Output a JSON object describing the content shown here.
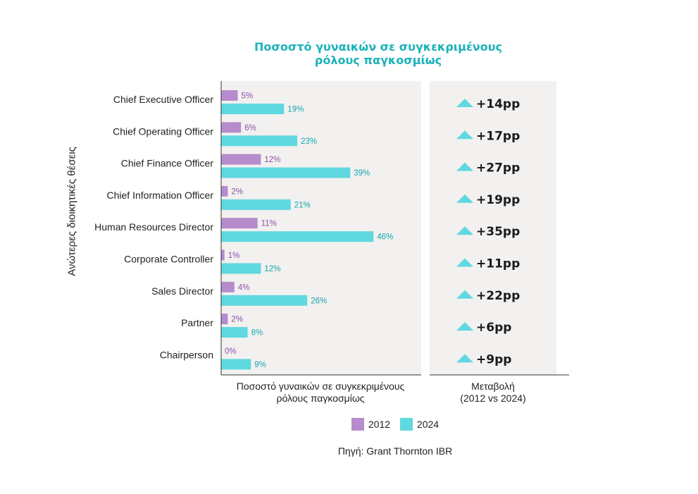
{
  "chart_data": {
    "type": "bar",
    "title": [
      "Ποσοστό γυναικών σε συγκεκριμένους",
      "ρόλους παγκοσμίως"
    ],
    "ylabel": "Ανώτερες διοικητικές θέσεις",
    "xlabel": [
      "Ποσοστό γυναικών σε συγκεκριμένους",
      "ρόλους παγκοσμίως"
    ],
    "change_label": [
      "Μεταβολή",
      "(2012 vs 2024)"
    ],
    "categories": [
      "Chief Executive Officer",
      "Chief Operating Officer",
      "Chief Finance Officer",
      "Chief Information Officer",
      "Human Resources Director",
      "Corporate Controller",
      "Sales Director",
      "Partner",
      "Chairperson"
    ],
    "series": [
      {
        "name": "2012",
        "color": "#b68ccc",
        "label_color": "#8d4fa8",
        "values": [
          5,
          6,
          12,
          2,
          11,
          1,
          4,
          2,
          0
        ]
      },
      {
        "name": "2024",
        "color": "#5fd8df",
        "label_color": "#16a5ad",
        "values": [
          19,
          23,
          39,
          21,
          46,
          12,
          26,
          8,
          9
        ]
      }
    ],
    "value_labels_2012": [
      "5%",
      "6%",
      "12%",
      "2%",
      "11%",
      "1%",
      "4%",
      "2%",
      "0%"
    ],
    "value_labels_2024": [
      "19%",
      "23%",
      "39%",
      "21%",
      "46%",
      "12%",
      "26%",
      "8%",
      "9%"
    ],
    "changes": [
      "+14pp",
      "+17pp",
      "+27pp",
      "+19pp",
      "+35pp",
      "+11pp",
      "+22pp",
      "+6pp",
      "+9pp"
    ],
    "change_icon": "triangle-up-icon",
    "accent_color": "#5fd8df",
    "panel_color": "#f2f1f0",
    "grid": false,
    "legend_position": "bottom"
  },
  "source": "Πηγή: Grant Thornton IBR"
}
